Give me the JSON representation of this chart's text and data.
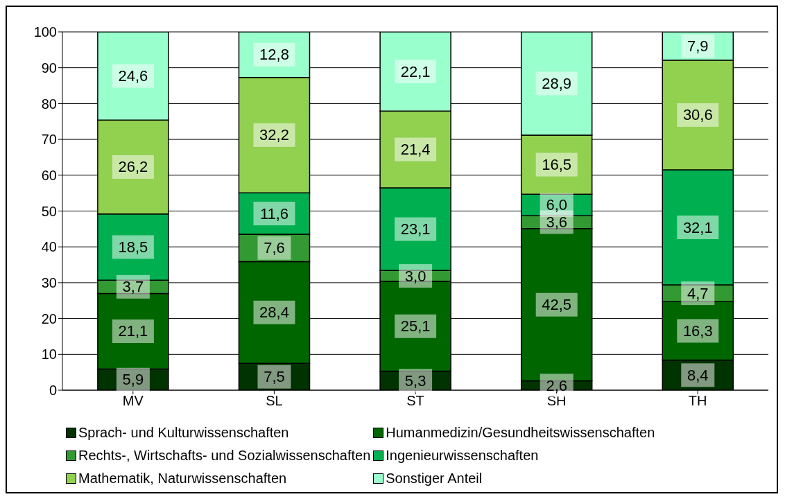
{
  "chart_data": {
    "type": "bar",
    "stacked": true,
    "categories": [
      "MV",
      "SL",
      "ST",
      "SH",
      "TH"
    ],
    "series": [
      {
        "name": "Sprach- und Kulturwissenschaften",
        "color": "#003300",
        "values": [
          5.9,
          7.5,
          5.3,
          2.6,
          8.4
        ],
        "value_labels": [
          "5,9",
          "7,5",
          "5,3",
          "2,6",
          "8,4"
        ]
      },
      {
        "name": "Humanmedizin/Gesundheitswissenschaften",
        "color": "#006600",
        "values": [
          21.1,
          28.4,
          25.1,
          42.5,
          16.3
        ],
        "value_labels": [
          "21,1",
          "28,4",
          "25,1",
          "42,5",
          "16,3"
        ]
      },
      {
        "name": "Rechts-, Wirtschafts- und Sozialwissenschaften",
        "color": "#339933",
        "values": [
          3.7,
          7.6,
          3.0,
          3.6,
          4.7
        ],
        "value_labels": [
          "3,7",
          "7,6",
          "3,0",
          "3,6",
          "4,7"
        ]
      },
      {
        "name": "Ingenieurwissenschaften",
        "color": "#00b050",
        "values": [
          18.5,
          11.6,
          23.1,
          6.0,
          32.1
        ],
        "value_labels": [
          "18,5",
          "11,6",
          "23,1",
          "6,0",
          "32,1"
        ]
      },
      {
        "name": "Mathematik, Naturwissenschaften",
        "color": "#92d050",
        "values": [
          26.2,
          32.2,
          21.4,
          16.5,
          30.6
        ],
        "value_labels": [
          "26,2",
          "32,2",
          "21,4",
          "16,5",
          "30,6"
        ]
      },
      {
        "name": "Sonstiger Anteil",
        "color": "#99ffcc",
        "values": [
          24.6,
          12.8,
          22.1,
          28.9,
          7.9
        ],
        "value_labels": [
          "24,6",
          "12,8",
          "22,1",
          "28,9",
          "7,9"
        ]
      }
    ],
    "ylim": [
      0,
      100
    ],
    "yticks": [
      0,
      10,
      20,
      30,
      40,
      50,
      60,
      70,
      80,
      90,
      100
    ],
    "grid": "y",
    "legend": "bottom"
  }
}
